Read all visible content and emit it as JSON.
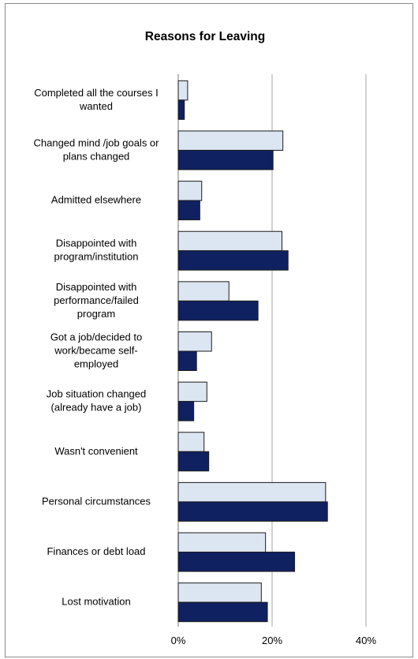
{
  "chart_data": {
    "type": "bar",
    "orientation": "horizontal",
    "title": "Reasons for Leaving",
    "xlabel": "",
    "ylabel": "",
    "xlim": [
      0,
      40
    ],
    "x_ticks": [
      "0%",
      "20%",
      "40%"
    ],
    "grid": true,
    "legend": null,
    "categories": [
      [
        "Completed all the courses I",
        "wanted"
      ],
      [
        "Changed mind /job goals or",
        "plans changed"
      ],
      [
        "Admitted elsewhere"
      ],
      [
        "Disappointed with",
        "program/institution"
      ],
      [
        "Disappointed with",
        "performance/failed",
        "program"
      ],
      [
        "Got a job/decided to",
        "work/became self-",
        "employed"
      ],
      [
        "Job situation changed",
        "(already have a job)"
      ],
      [
        "Wasn't convenient"
      ],
      [
        "Personal circumstances"
      ],
      [
        "Finances or debt load"
      ],
      [
        "Lost motivation"
      ]
    ],
    "series": [
      {
        "color": "#dce6f2",
        "values": [
          2.0,
          22.3,
          5.0,
          22.1,
          10.8,
          7.1,
          6.1,
          5.5,
          31.4,
          18.6,
          17.7
        ]
      },
      {
        "color": "#0f2160",
        "values": [
          1.3,
          20.2,
          4.6,
          23.4,
          17.0,
          3.9,
          3.3,
          6.5,
          31.8,
          24.8,
          19.0
        ]
      }
    ]
  }
}
